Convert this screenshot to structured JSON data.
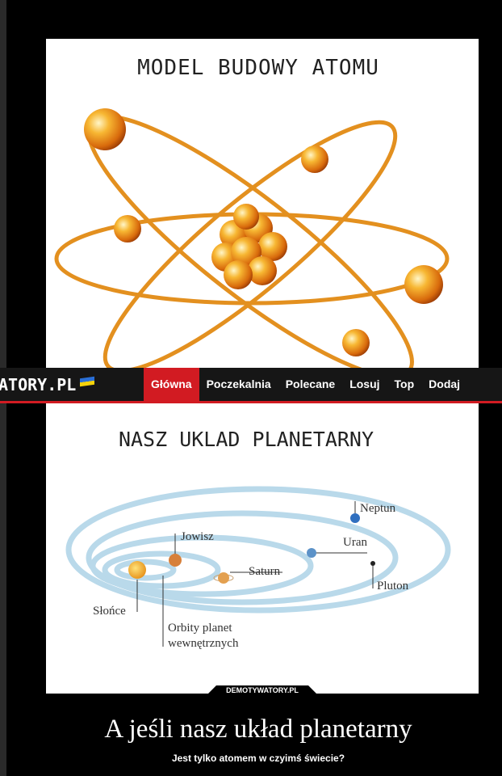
{
  "header": {
    "title": "MODEL BUDOWY ATOMU"
  },
  "nav": {
    "logo": "ATORY.PL",
    "items": [
      "Główna",
      "Poczekalnia",
      "Polecane",
      "Losuj",
      "Top",
      "Dodaj"
    ]
  },
  "diagram": {
    "title": "NASZ UKLAD PLANETARNY",
    "labels": {
      "neptun": "Neptun",
      "jowisz": "Jowisz",
      "uran": "Uran",
      "saturn": "Saturn",
      "pluton": "Pluton",
      "slonce": "Słońce",
      "orbity": [
        "Orbity planet",
        "wewnętrznych"
      ]
    }
  },
  "watermark": "DEMOTYWATORY.PL",
  "caption": {
    "title": "A jeśli nasz układ planetarny",
    "subtitle": "Jest tylko atomem w czyimś świecie?"
  }
}
